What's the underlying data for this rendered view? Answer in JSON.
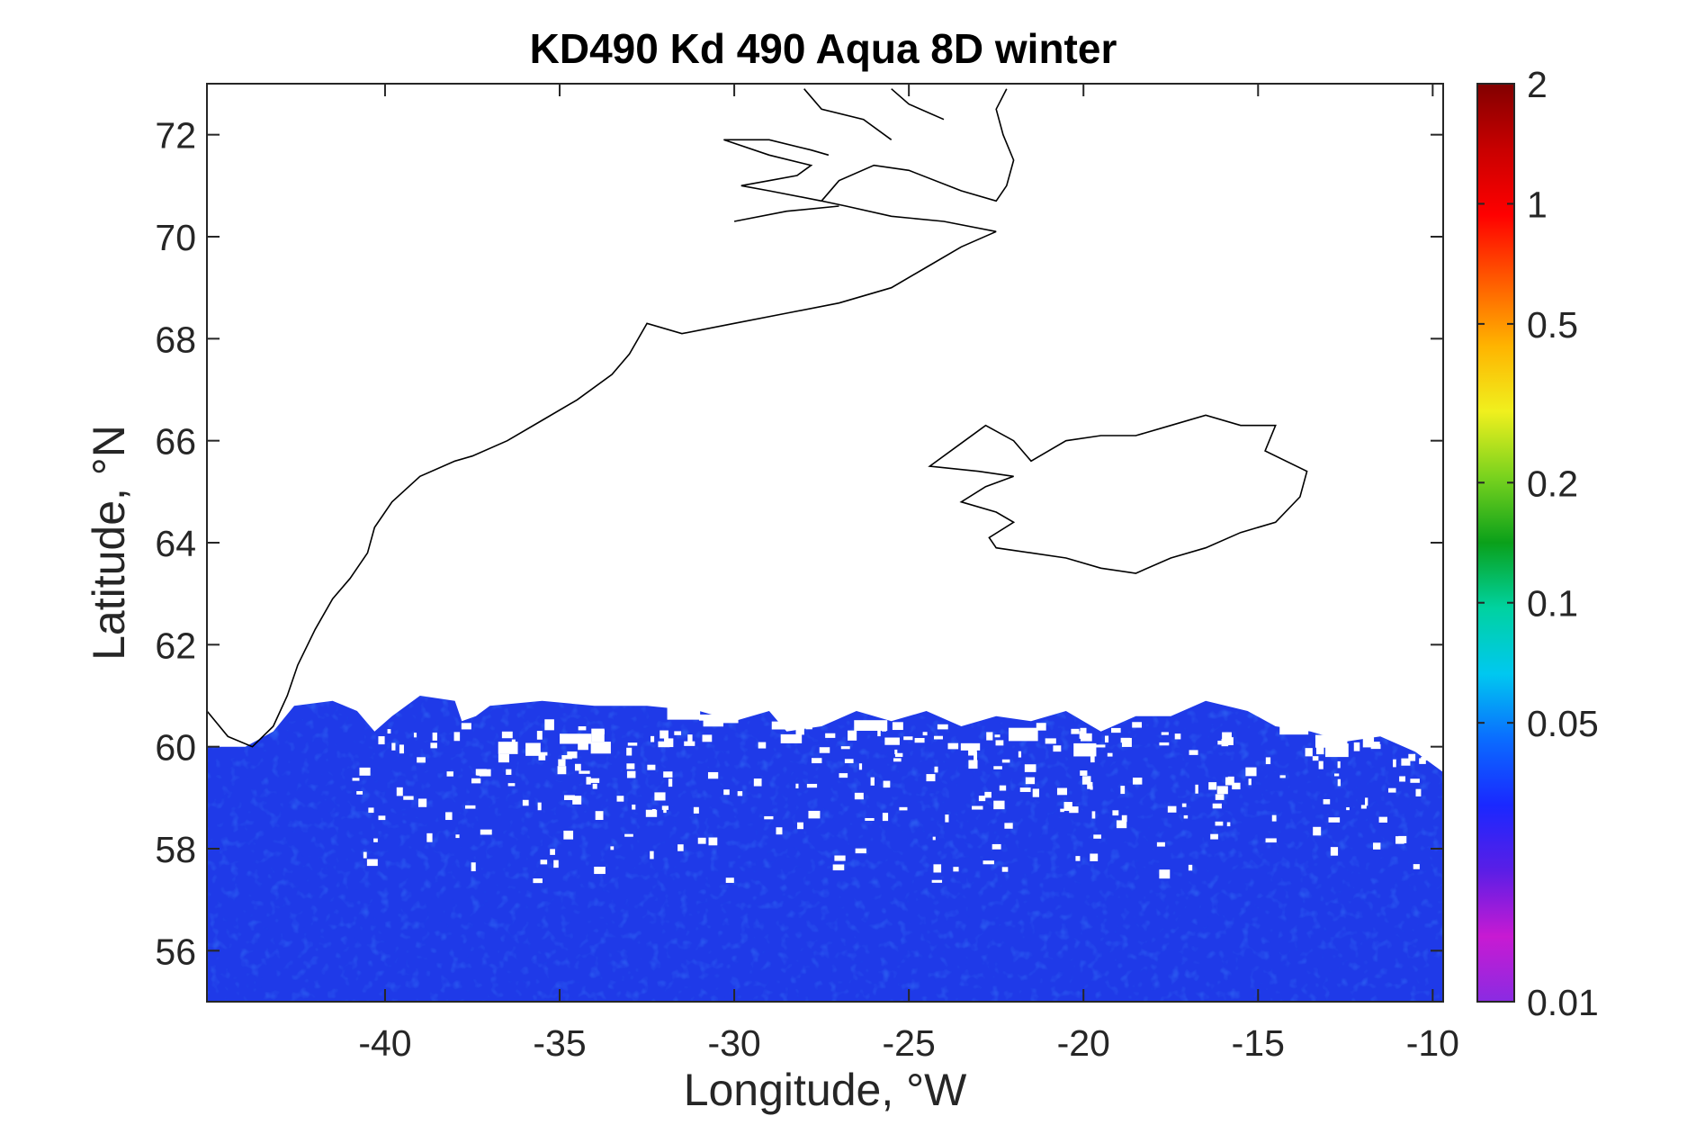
{
  "title": "KD490 Kd 490 Aqua 8D winter",
  "xlabel": "Longitude, °W",
  "ylabel": "Latitude, °N",
  "map": {
    "lon_range": [
      -45.1,
      -9.7
    ],
    "lat_range": [
      55,
      73
    ],
    "x_ticks": [
      -40,
      -35,
      -30,
      -25,
      -20,
      -15,
      -10
    ],
    "y_ticks": [
      56,
      58,
      60,
      62,
      64,
      66,
      68,
      70,
      72
    ],
    "land_color": "#ffffff",
    "coast_color": "#000000",
    "data_coverage_north_edge_lat": 60.5,
    "dominant_value": 0.05,
    "dominant_color": "#1f3cf0"
  },
  "colorbar": {
    "scale": "log",
    "range": [
      0.01,
      2
    ],
    "ticks": [
      {
        "value": 0.01,
        "label": "0.01"
      },
      {
        "value": 0.05,
        "label": "0.05"
      },
      {
        "value": 0.1,
        "label": "0.1"
      },
      {
        "value": 0.2,
        "label": "0.2"
      },
      {
        "value": 0.5,
        "label": "0.5"
      },
      {
        "value": 1,
        "label": "1"
      },
      {
        "value": 2,
        "label": "2"
      }
    ],
    "colormap": [
      "#8a2be2",
      "#c81ad2",
      "#5a1ee6",
      "#1a28ff",
      "#0a6cff",
      "#00c8f0",
      "#00d2a0",
      "#0aa01a",
      "#78d21e",
      "#f0f01e",
      "#ffb400",
      "#ff5a00",
      "#ff0000",
      "#c80000",
      "#820000"
    ]
  },
  "chart_data": {
    "type": "heatmap",
    "title": "KD490 Kd 490 Aqua 8D winter",
    "xlabel": "Longitude, °W",
    "ylabel": "Latitude, °N",
    "xlim": [
      -45.1,
      -9.7
    ],
    "ylim": [
      55,
      73
    ],
    "colorbar_range": [
      0.01,
      2
    ],
    "colorbar_scale": "log",
    "typical_value": 0.05
  }
}
